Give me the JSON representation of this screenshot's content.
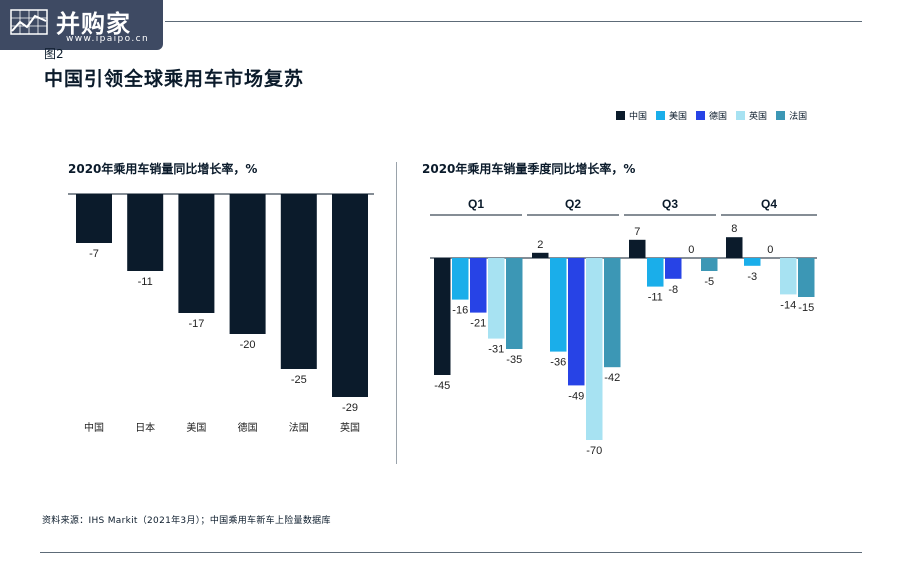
{
  "logo": {
    "text": "并购家",
    "url": "www.ipaipo.cn"
  },
  "figure_label": "图2",
  "title": "中国引领全球乘用车市场复苏",
  "legend": [
    {
      "label": "中国",
      "color": "#0b1b2b"
    },
    {
      "label": "美国",
      "color": "#1aaeea"
    },
    {
      "label": "德国",
      "color": "#2743e6"
    },
    {
      "label": "英国",
      "color": "#a7e2f2"
    },
    {
      "label": "法国",
      "color": "#3c97b5"
    }
  ],
  "source": "资料来源：IHS Markit（2021年3月）；中国乘用车新车上险量数据库",
  "chart_data": [
    {
      "type": "bar",
      "title": "2020年乘用车销量同比增长率，%",
      "categories": [
        "中国",
        "日本",
        "美国",
        "德国",
        "法国",
        "英国"
      ],
      "values": [
        -7,
        -11,
        -17,
        -20,
        -25,
        -29
      ],
      "data_labels": [
        "-7",
        "-11",
        "-17",
        "-20",
        "-25",
        "-29"
      ],
      "color": "#0b1b2b",
      "ylim": [
        -29,
        0
      ]
    },
    {
      "type": "bar",
      "title": "2020年乘用车销量季度同比增长率，%",
      "categories": [
        "Q1",
        "Q2",
        "Q3",
        "Q4"
      ],
      "series": [
        {
          "name": "中国",
          "color": "#0b1b2b",
          "values": [
            -45,
            2,
            7,
            8
          ]
        },
        {
          "name": "美国",
          "color": "#1aaeea",
          "values": [
            -16,
            -36,
            -11,
            -3
          ]
        },
        {
          "name": "德国",
          "color": "#2743e6",
          "values": [
            -21,
            -49,
            -8,
            0
          ]
        },
        {
          "name": "英国",
          "color": "#a7e2f2",
          "values": [
            -31,
            -70,
            0,
            -14
          ]
        },
        {
          "name": "法国",
          "color": "#3c97b5",
          "values": [
            -35,
            -42,
            -5,
            -15
          ]
        }
      ],
      "data_labels": [
        [
          "-45",
          "-16",
          "-21",
          "-31",
          "-35"
        ],
        [
          "2",
          "-36",
          "-49",
          "-70",
          "-42"
        ],
        [
          "7",
          "-11",
          "-8",
          "0",
          "-5"
        ],
        [
          "8",
          "-3",
          "0",
          "-14",
          "-15"
        ]
      ],
      "ylim": [
        -70,
        8
      ]
    }
  ]
}
